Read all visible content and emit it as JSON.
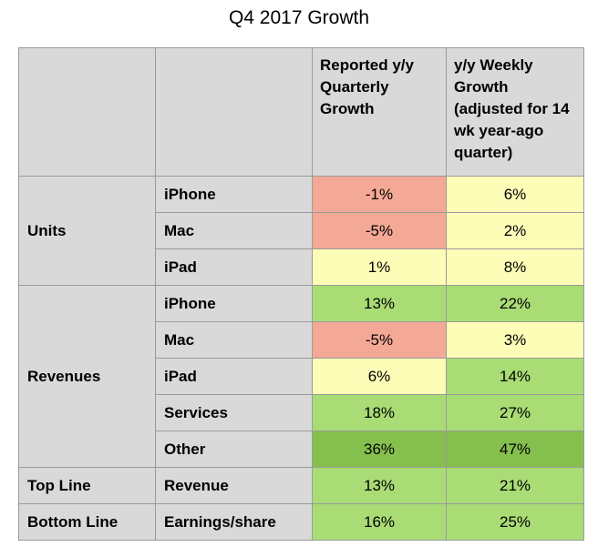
{
  "title": "Q4 2017 Growth",
  "chart_data": {
    "type": "table",
    "title": "Q4 2017 Growth",
    "columns": [
      "",
      "",
      "Reported y/y Quarterly Growth",
      "y/y Weekly Growth (adjusted for 14 wk year-ago quarter)"
    ],
    "groups": [
      {
        "label": "Units",
        "rows": [
          {
            "item": "iPhone",
            "reported": "-1%",
            "weekly": "6%",
            "reported_value": -1,
            "weekly_value": 6,
            "reported_color": "red",
            "weekly_color": "yellow"
          },
          {
            "item": "Mac",
            "reported": "-5%",
            "weekly": "2%",
            "reported_value": -5,
            "weekly_value": 2,
            "reported_color": "red",
            "weekly_color": "yellow"
          },
          {
            "item": "iPad",
            "reported": "1%",
            "weekly": "8%",
            "reported_value": 1,
            "weekly_value": 8,
            "reported_color": "yellow",
            "weekly_color": "yellow"
          }
        ]
      },
      {
        "label": "Revenues",
        "rows": [
          {
            "item": "iPhone",
            "reported": "13%",
            "weekly": "22%",
            "reported_value": 13,
            "weekly_value": 22,
            "reported_color": "green",
            "weekly_color": "green"
          },
          {
            "item": "Mac",
            "reported": "-5%",
            "weekly": "3%",
            "reported_value": -5,
            "weekly_value": 3,
            "reported_color": "red",
            "weekly_color": "yellow"
          },
          {
            "item": "iPad",
            "reported": "6%",
            "weekly": "14%",
            "reported_value": 6,
            "weekly_value": 14,
            "reported_color": "yellow",
            "weekly_color": "green"
          },
          {
            "item": "Services",
            "reported": "18%",
            "weekly": "27%",
            "reported_value": 18,
            "weekly_value": 27,
            "reported_color": "green",
            "weekly_color": "green"
          },
          {
            "item": "Other",
            "reported": "36%",
            "weekly": "47%",
            "reported_value": 36,
            "weekly_value": 47,
            "reported_color": "dark-green",
            "weekly_color": "dark-green"
          }
        ]
      },
      {
        "label": "Top Line",
        "rows": [
          {
            "item": "Revenue",
            "reported": "13%",
            "weekly": "21%",
            "reported_value": 13,
            "weekly_value": 21,
            "reported_color": "green",
            "weekly_color": "green"
          }
        ]
      },
      {
        "label": "Bottom Line",
        "rows": [
          {
            "item": "Earnings/share",
            "reported": "16%",
            "weekly": "25%",
            "reported_value": 16,
            "weekly_value": 25,
            "reported_color": "green",
            "weekly_color": "green"
          }
        ]
      }
    ]
  },
  "colors": {
    "red": "#f4a896",
    "yellow": "#fefdb8",
    "green": "#a9dc75",
    "dark-green": "#85c04e",
    "header": "#d9d9d9"
  }
}
